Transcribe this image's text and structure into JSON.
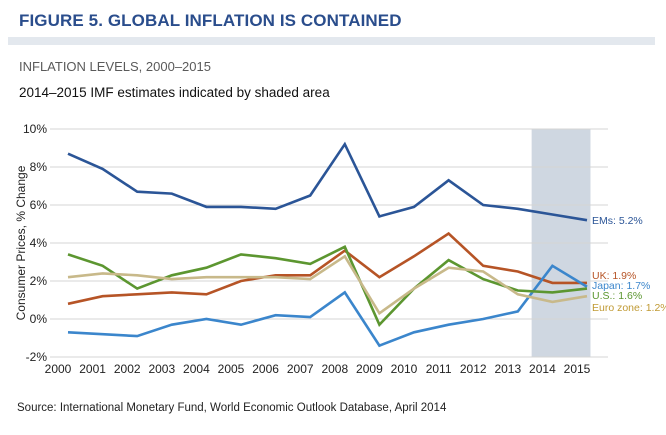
{
  "figure_title": "FIGURE 5. GLOBAL INFLATION IS CONTAINED",
  "subtitle": "INFLATION LEVELS, 2000–2015",
  "note": "2014–2015 IMF estimates indicated by shaded area",
  "source": "Source: International Monetary Fund, World Economic Outlook Database, April 2014",
  "colors": {
    "title": "#2a4d8c",
    "shade": "#cfd7e1",
    "grid": "#d4d4d4"
  },
  "chart_data": {
    "type": "line",
    "title": "INFLATION LEVELS, 2000–2015",
    "subtitle": "2014–2015 IMF estimates indicated by shaded area",
    "xlabel": "",
    "ylabel": "Consumer Prices, % Change",
    "x": [
      "2000",
      "2001",
      "2002",
      "2003",
      "2004",
      "2005",
      "2006",
      "2007",
      "2008",
      "2009",
      "2010",
      "2011",
      "2012",
      "2013",
      "2014",
      "2015"
    ],
    "ylim": [
      -2,
      10
    ],
    "yticks": [
      -2,
      0,
      2,
      4,
      6,
      8,
      10
    ],
    "ytick_labels": [
      "-2%",
      "0%",
      "2%",
      "4%",
      "6%",
      "8%",
      "10%"
    ],
    "grid": true,
    "legend": "end-of-line labels (right)",
    "shaded_range": [
      "2014",
      "2015"
    ],
    "shaded_label": "IMF estimates",
    "series": [
      {
        "name": "EMs",
        "end_label": "EMs: 5.2%",
        "color": "#2b5597",
        "values": [
          8.7,
          7.9,
          6.7,
          6.6,
          5.9,
          5.9,
          5.8,
          6.5,
          9.2,
          5.4,
          5.9,
          7.3,
          6.0,
          5.8,
          5.5,
          5.2
        ]
      },
      {
        "name": "UK",
        "end_label": "UK: 1.9%",
        "color": "#b65426",
        "values": [
          0.8,
          1.2,
          1.3,
          1.4,
          1.3,
          2.0,
          2.3,
          2.3,
          3.6,
          2.2,
          3.3,
          4.5,
          2.8,
          2.5,
          1.9,
          1.9
        ]
      },
      {
        "name": "Japan",
        "end_label": "Japan: 1.7%",
        "color": "#3b86cc",
        "values": [
          -0.7,
          -0.8,
          -0.9,
          -0.3,
          0.0,
          -0.3,
          0.2,
          0.1,
          1.4,
          -1.4,
          -0.7,
          -0.3,
          0.0,
          0.4,
          2.8,
          1.7
        ]
      },
      {
        "name": "U.S.",
        "end_label": "U.S.: 1.6%",
        "color": "#5c9630",
        "values": [
          3.4,
          2.8,
          1.6,
          2.3,
          2.7,
          3.4,
          3.2,
          2.9,
          3.8,
          -0.3,
          1.6,
          3.1,
          2.1,
          1.5,
          1.4,
          1.6
        ]
      },
      {
        "name": "Euro zone",
        "end_label": "Euro zone: 1.2%",
        "color": "#c8b98a",
        "label_color": "#c09a34",
        "values": [
          2.2,
          2.4,
          2.3,
          2.1,
          2.2,
          2.2,
          2.2,
          2.1,
          3.3,
          0.3,
          1.6,
          2.7,
          2.5,
          1.3,
          0.9,
          1.2
        ]
      }
    ]
  }
}
